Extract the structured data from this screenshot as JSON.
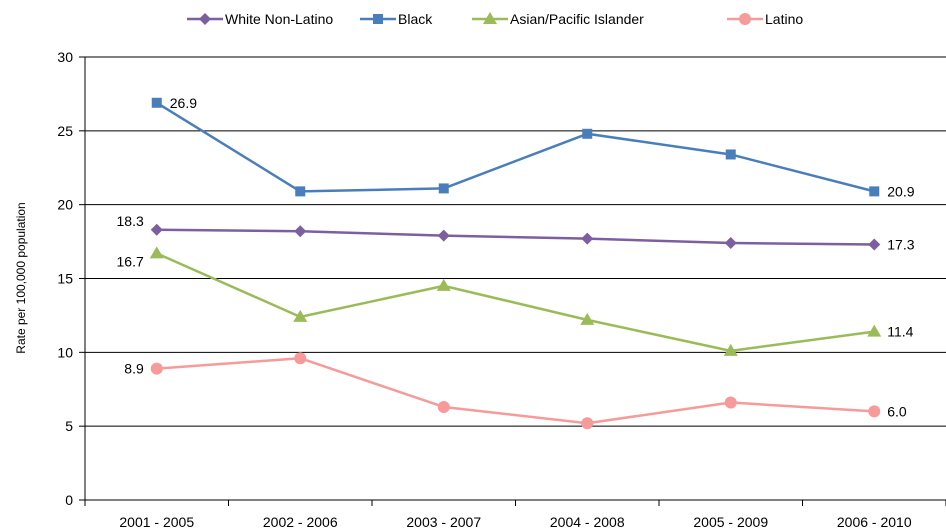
{
  "chart_data": {
    "type": "line",
    "title": "",
    "xlabel": "",
    "ylabel": "Rate per 100,000 population",
    "ylim": [
      0,
      30
    ],
    "yticks": [
      0,
      5,
      10,
      15,
      20,
      25,
      30
    ],
    "grid": "horizontal",
    "legend_position": "top",
    "categories": [
      "2001 - 2005",
      "2002 - 2006",
      "2003 - 2007",
      "2004 - 2008",
      "2005 - 2009",
      "2006 - 2010"
    ],
    "series": [
      {
        "name": "White Non-Latino",
        "color": "#7D5FA0",
        "marker": "diamond",
        "values": [
          18.3,
          18.2,
          17.9,
          17.7,
          17.4,
          17.3
        ],
        "labels": [
          "18.3",
          "",
          "",
          "",
          "",
          "17.3"
        ]
      },
      {
        "name": "Black",
        "color": "#4A7EBB",
        "marker": "square",
        "values": [
          26.9,
          20.9,
          21.1,
          24.8,
          23.4,
          20.9
        ],
        "labels": [
          "26.9",
          "",
          "",
          "",
          "",
          "20.9"
        ]
      },
      {
        "name": "Asian/Pacific Islander",
        "color": "#9BBB59",
        "marker": "triangle",
        "values": [
          16.7,
          12.4,
          14.5,
          12.2,
          10.1,
          11.4
        ],
        "labels": [
          "16.7",
          "",
          "",
          "",
          "",
          "11.4"
        ]
      },
      {
        "name": "Latino",
        "color": "#F79A9A",
        "marker": "circle",
        "values": [
          8.9,
          9.6,
          6.3,
          5.2,
          6.6,
          6.0
        ],
        "labels": [
          "8.9",
          "",
          "",
          "",
          "",
          "6.0"
        ]
      }
    ]
  }
}
